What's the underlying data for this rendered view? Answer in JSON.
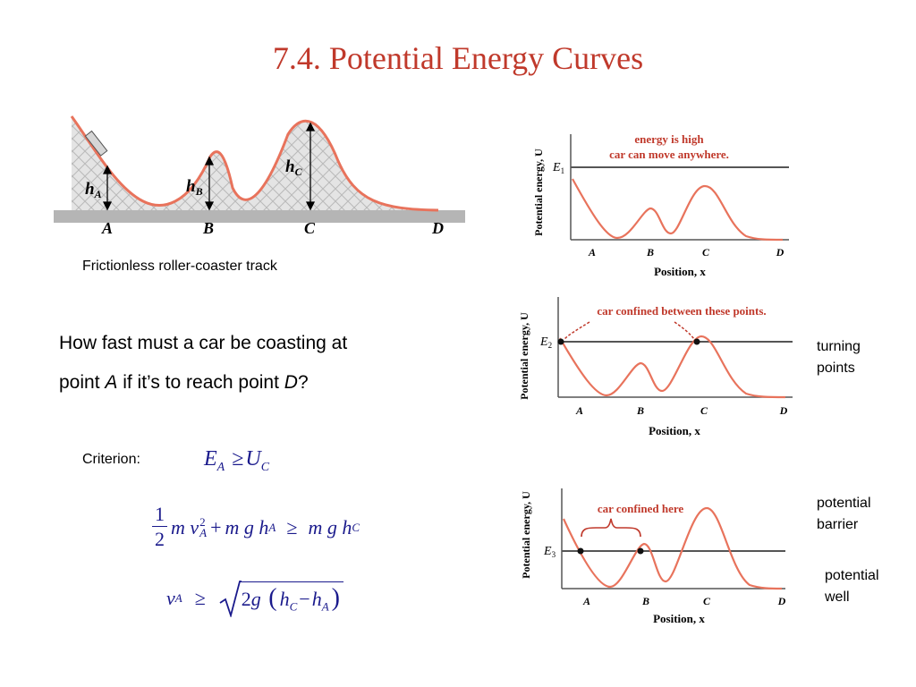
{
  "slide": {
    "title": "7.4. Potential Energy Curves",
    "track_caption": "Frictionless roller-coaster track",
    "question": {
      "line1": "How fast must a car be coasting at",
      "line2_pre": "point ",
      "line2_A": "A",
      "line2_mid": " if it’s to reach point ",
      "line2_D": "D",
      "line2_post": "?"
    },
    "criterion_label": "Criterion:",
    "side_labels": {
      "turning": [
        "turning",
        "points"
      ],
      "barrier": [
        "potential",
        "barrier"
      ],
      "well": [
        "potential",
        "well"
      ]
    }
  },
  "track": {
    "points": [
      "A",
      "B",
      "C",
      "D"
    ],
    "heights": {
      "A": "h",
      "A_sub": "A",
      "B": "h",
      "B_sub": "B",
      "C": "h",
      "C_sub": "C"
    }
  },
  "graphs": {
    "ylabel": "Potential energy, U",
    "xlabel": "Position, x",
    "ticks": [
      "A",
      "B",
      "C",
      "D"
    ],
    "g1": {
      "level": "E",
      "level_sub": "1",
      "note1": "energy is high",
      "note2": "car can move anywhere."
    },
    "g2": {
      "level": "E",
      "level_sub": "2",
      "note": "car confined between these points."
    },
    "g3": {
      "level": "E",
      "level_sub": "3",
      "note": "car confined here"
    }
  },
  "equations": {
    "criterion": {
      "E": "E",
      "E_sub": "A",
      "geq": "≥",
      "U": "U",
      "U_sub": "C"
    },
    "energy": {
      "num": "1",
      "den": "2",
      "m": "m",
      "v": "v",
      "v_sup": "2",
      "v_sub": "A",
      "plus": "+",
      "m2": "m",
      "g": "g",
      "h": "h",
      "h_sub": "A",
      "geq": "≥",
      "m3": "m",
      "g2": "g",
      "h2": "h",
      "h2_sub": "C"
    },
    "result": {
      "v": "v",
      "v_sub": "A",
      "geq": "≥",
      "two": "2",
      "g": "g",
      "lp": "(",
      "h": "h",
      "h_sub": "C",
      "minus": "−",
      "h2": "h",
      "h2_sub": "A",
      "rp": ")"
    }
  },
  "colors": {
    "title": "#c0392b",
    "curve": "#e8735c",
    "note": "#c0392b",
    "math": "#1a1a8c"
  }
}
